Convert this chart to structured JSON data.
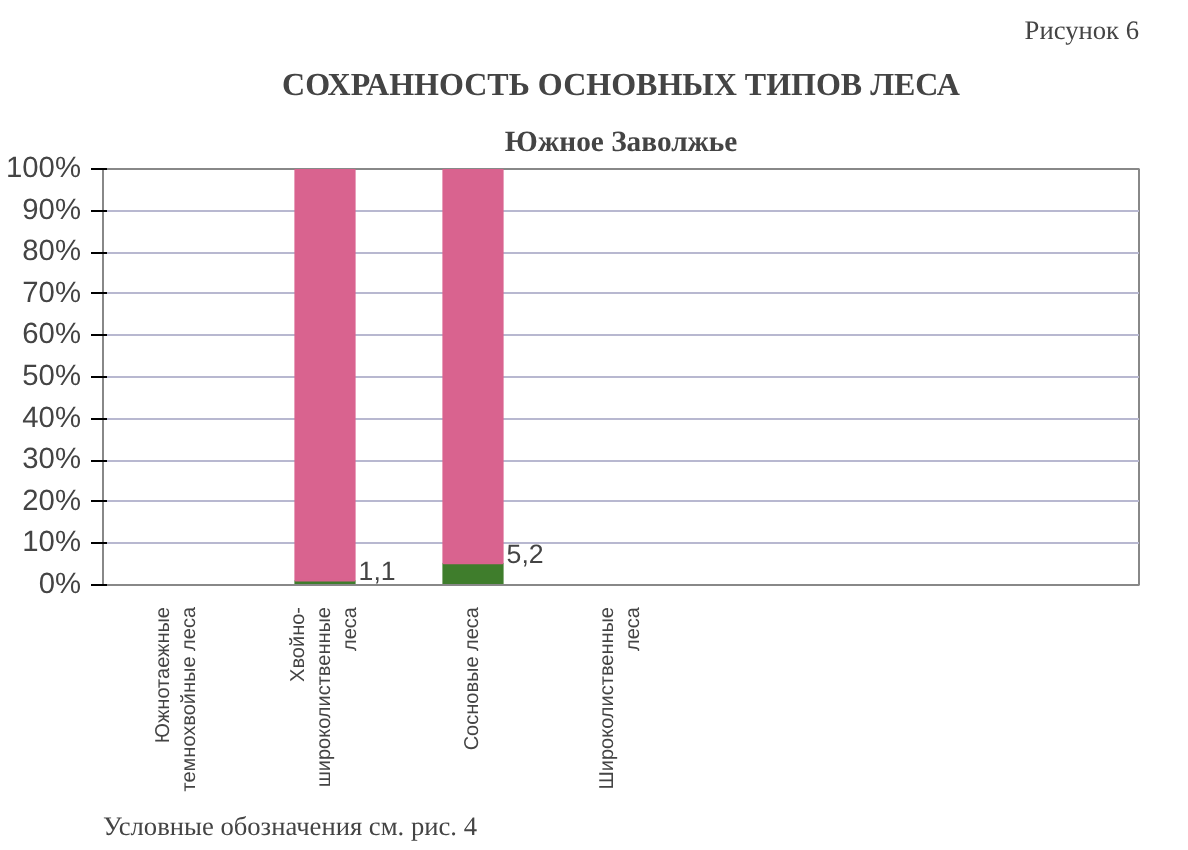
{
  "chart_data": {
    "type": "bar",
    "stacked": true,
    "title": "СОХРАННОСТЬ ОСНОВНЫХ ТИПОВ ЛЕСА",
    "subtitle": "Южное Заволжье",
    "annotations": [
      "Рисунок 6",
      "Условные обозначения см. рис. 4"
    ],
    "categories": [
      "Южнотаежные\nтемнохвойные леса",
      "Хвойно-\nшироколиственные\nлеса",
      "Сосновые леса",
      "Широколиственные\nлеса",
      null,
      null,
      null
    ],
    "series": [
      {
        "color": "#3f7d2c",
        "values": [
          null,
          1.1,
          5.2,
          null,
          null,
          null,
          null
        ],
        "value_labels": [
          null,
          "1,1",
          "5,2",
          null,
          null,
          null,
          null
        ]
      },
      {
        "color": "#d9638f",
        "values": [
          null,
          98.9,
          94.8,
          null,
          null,
          null,
          null
        ]
      }
    ],
    "ylim": [
      0,
      100
    ],
    "yticks": [
      {
        "value": 0,
        "label": "0%"
      },
      {
        "value": 10,
        "label": "10%"
      },
      {
        "value": 20,
        "label": "20%"
      },
      {
        "value": 30,
        "label": "30%"
      },
      {
        "value": 40,
        "label": "40%"
      },
      {
        "value": 50,
        "label": "50%"
      },
      {
        "value": 60,
        "label": "60%"
      },
      {
        "value": 70,
        "label": "70%"
      },
      {
        "value": 80,
        "label": "80%"
      },
      {
        "value": 90,
        "label": "90%"
      },
      {
        "value": 100,
        "label": "100%"
      }
    ],
    "grid": "y"
  }
}
